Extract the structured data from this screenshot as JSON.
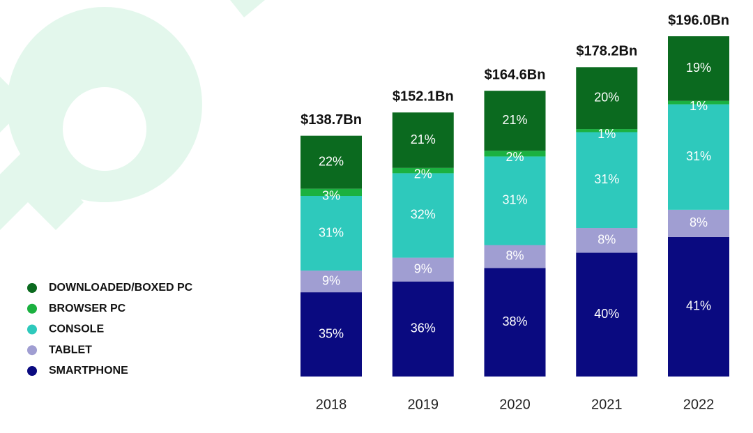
{
  "chart_data": {
    "type": "stacked_bar",
    "categories": [
      "2018",
      "2019",
      "2020",
      "2021",
      "2022"
    ],
    "totals": {
      "values": [
        138.7,
        152.1,
        164.6,
        178.2,
        196.0
      ],
      "value_labels": [
        "$138.7Bn",
        "$152.1Bn",
        "$164.6Bn",
        "$178.2Bn",
        "$196.0Bn"
      ]
    },
    "series": [
      {
        "name": "SMARTPHONE",
        "color": "#0a0a80",
        "values": [
          35,
          36,
          38,
          40,
          41
        ],
        "value_labels": [
          "35%",
          "36%",
          "38%",
          "40%",
          "41%"
        ]
      },
      {
        "name": "TABLET",
        "color": "#a09ed2",
        "values": [
          9,
          9,
          8,
          8,
          8
        ],
        "value_labels": [
          "9%",
          "9%",
          "8%",
          "8%",
          "8%"
        ]
      },
      {
        "name": "CONSOLE",
        "color": "#2ec9bc",
        "values": [
          31,
          32,
          31,
          31,
          31
        ],
        "value_labels": [
          "31%",
          "32%",
          "31%",
          "31%",
          "31%"
        ]
      },
      {
        "name": "BROWSER PC",
        "color": "#1bb140",
        "values": [
          3,
          2,
          2,
          1,
          1
        ],
        "value_labels": [
          "3%",
          "2%",
          "2%",
          "1%",
          "1%"
        ]
      },
      {
        "name": "DOWNLOADED/BOXED PC",
        "color": "#0b6a1f",
        "values": [
          22,
          21,
          21,
          20,
          19
        ],
        "value_labels": [
          "22%",
          "21%",
          "21%",
          "20%",
          "19%"
        ]
      }
    ],
    "legend": "left"
  }
}
